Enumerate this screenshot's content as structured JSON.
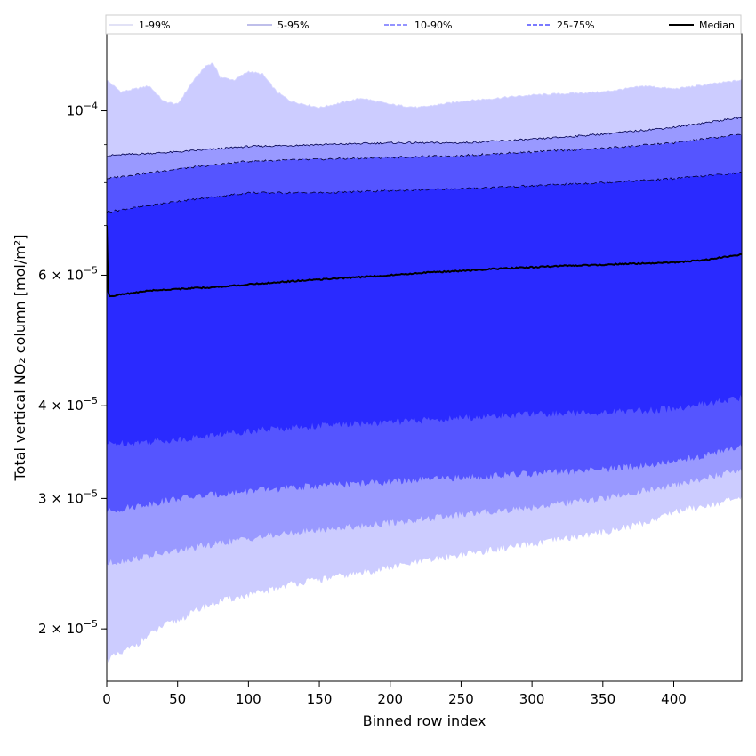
{
  "chart_data": {
    "type": "area",
    "xlabel": "Binned row index",
    "ylabel": "Total vertical NO₂ column [mol/m²]",
    "yscale": "log",
    "xlim": [
      0,
      448
    ],
    "ylim": [
      1.7e-05,
      0.000127
    ],
    "legend_position": "top",
    "x_ticks": [
      {
        "value": 0,
        "label": "0"
      },
      {
        "value": 50,
        "label": "50"
      },
      {
        "value": 100,
        "label": "100"
      },
      {
        "value": 150,
        "label": "150"
      },
      {
        "value": 200,
        "label": "200"
      },
      {
        "value": 250,
        "label": "250"
      },
      {
        "value": 300,
        "label": "300"
      },
      {
        "value": 350,
        "label": "350"
      },
      {
        "value": 400,
        "label": "400"
      }
    ],
    "y_ticks": [
      {
        "value": 2e-05,
        "mantissa": "2",
        "sup": "−5"
      },
      {
        "value": 3e-05,
        "mantissa": "3",
        "sup": "−5"
      },
      {
        "value": 4e-05,
        "mantissa": "4",
        "sup": "−5"
      },
      {
        "value": 6e-05,
        "mantissa": "6",
        "sup": "−5"
      },
      {
        "value": 0.0001,
        "mantissa": "",
        "sup": "−4"
      }
    ],
    "bands": [
      {
        "name": "1-99%",
        "fill": "#ccccff",
        "line": "#d9d9ff",
        "dash": "",
        "x": [
          0,
          10,
          20,
          30,
          40,
          50,
          60,
          70,
          75,
          80,
          90,
          100,
          110,
          120,
          130,
          150,
          180,
          200,
          220,
          250,
          300,
          350,
          380,
          400,
          448
        ],
        "upper": [
          0.00011,
          0.000106,
          0.000107,
          0.000108,
          0.000103,
          0.000102,
          0.000109,
          0.000115,
          0.000116,
          0.000111,
          0.00011,
          0.000113,
          0.000112,
          0.000106,
          0.000103,
          0.000101,
          0.000104,
          0.000102,
          0.000101,
          0.000103,
          0.000105,
          0.000106,
          0.000108,
          0.000107,
          0.00011
        ],
        "lower": [
          1.82e-05,
          1.85e-05,
          1.9e-05,
          1.96e-05,
          2.02e-05,
          2.05e-05,
          2.1e-05,
          2.15e-05,
          2.16e-05,
          2.18e-05,
          2.2e-05,
          2.22e-05,
          2.24e-05,
          2.27e-05,
          2.3e-05,
          2.33e-05,
          2.38e-05,
          2.42e-05,
          2.46e-05,
          2.52e-05,
          2.6e-05,
          2.7e-05,
          2.78e-05,
          2.88e-05,
          3e-05
        ]
      },
      {
        "name": "5-95%",
        "fill": "#9999ff",
        "line": "#00004d",
        "dash": "",
        "x": [
          0,
          50,
          100,
          150,
          200,
          250,
          300,
          350,
          400,
          448
        ],
        "upper": [
          8.7e-05,
          8.8e-05,
          8.95e-05,
          9e-05,
          9.05e-05,
          9.05e-05,
          9.15e-05,
          9.3e-05,
          9.5e-05,
          9.8e-05
        ],
        "lower": [
          2.45e-05,
          2.55e-05,
          2.65e-05,
          2.72e-05,
          2.78e-05,
          2.85e-05,
          2.92e-05,
          3e-05,
          3.12e-05,
          3.28e-05
        ]
      },
      {
        "name": "10-90%",
        "fill": "#5555ff",
        "line": "#00002e",
        "dash": "6,3",
        "x": [
          0,
          50,
          100,
          150,
          200,
          250,
          300,
          350,
          400,
          448
        ],
        "upper": [
          8.1e-05,
          8.35e-05,
          8.55e-05,
          8.6e-05,
          8.65e-05,
          8.7e-05,
          8.8e-05,
          8.9e-05,
          9.05e-05,
          9.3e-05
        ],
        "lower": [
          2.88e-05,
          3e-05,
          3.07e-05,
          3.12e-05,
          3.16e-05,
          3.2e-05,
          3.24e-05,
          3.28e-05,
          3.36e-05,
          3.52e-05
        ]
      },
      {
        "name": "25-75%",
        "fill": "#2a2aff",
        "line": "#000033",
        "dash": "7,3",
        "x": [
          0,
          50,
          100,
          150,
          200,
          250,
          300,
          350,
          400,
          448
        ],
        "upper": [
          7.3e-05,
          7.55e-05,
          7.75e-05,
          7.75e-05,
          7.8e-05,
          7.85e-05,
          7.92e-05,
          8e-05,
          8.1e-05,
          8.25e-05
        ],
        "lower": [
          3.55e-05,
          3.6e-05,
          3.7e-05,
          3.76e-05,
          3.8e-05,
          3.85e-05,
          3.9e-05,
          3.92e-05,
          3.96e-05,
          4.1e-05
        ]
      }
    ],
    "median": {
      "name": "Median",
      "color": "#000000",
      "x": [
        0,
        1,
        2,
        10,
        30,
        50,
        75,
        100,
        125,
        150,
        175,
        200,
        225,
        250,
        275,
        300,
        325,
        350,
        375,
        400,
        425,
        448
      ],
      "y": [
        7e-05,
        5.7e-05,
        5.62e-05,
        5.65e-05,
        5.72e-05,
        5.75e-05,
        5.78e-05,
        5.83e-05,
        5.88e-05,
        5.92e-05,
        5.96e-05,
        6e-05,
        6.05e-05,
        6.08e-05,
        6.12e-05,
        6.15e-05,
        6.18e-05,
        6.2e-05,
        6.22e-05,
        6.24e-05,
        6.3e-05,
        6.4e-05
      ]
    }
  }
}
